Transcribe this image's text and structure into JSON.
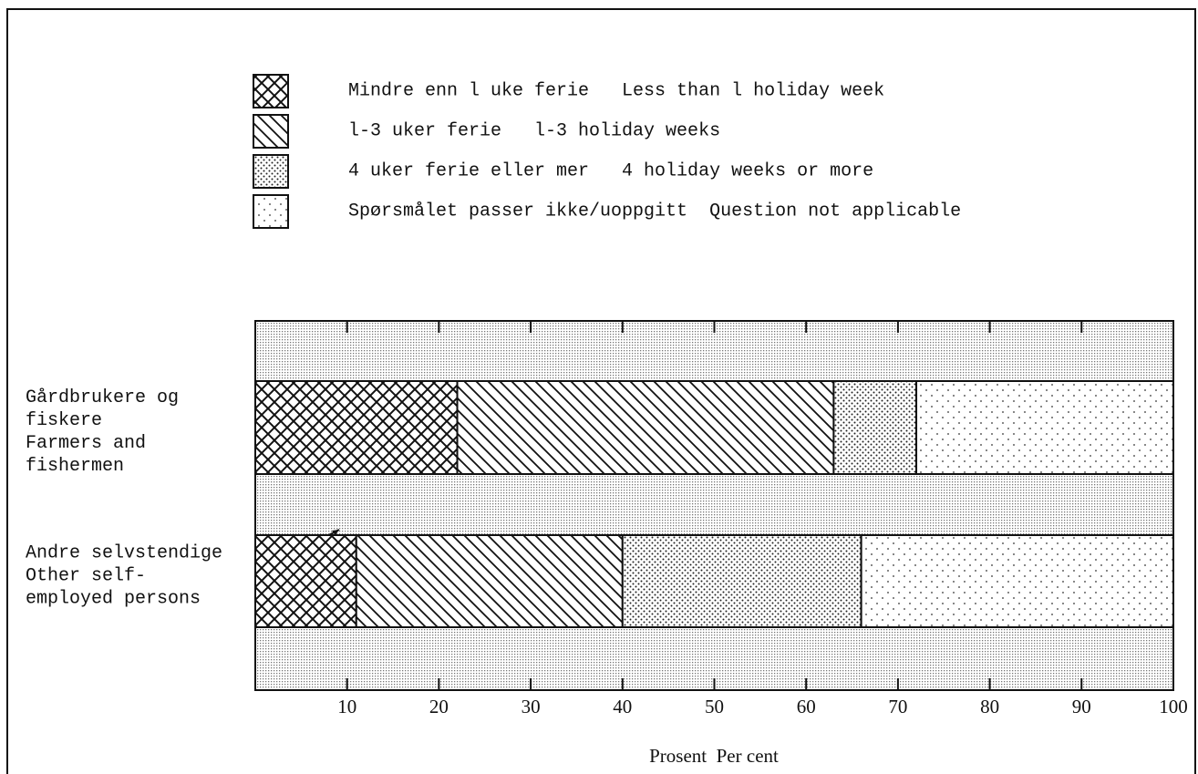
{
  "chart_data": {
    "type": "stacked-barh",
    "categories": [
      "Gårdbrukere og\nfiskere\nFarmers and\nfishermen",
      "Andre selvstendige\nOther self-\nemployed persons"
    ],
    "series": [
      {
        "name": "Mindre enn l uke ferie   Less than l holiday week",
        "pattern": "crosshatch",
        "values": [
          22,
          11
        ]
      },
      {
        "name": "l-3 uker ferie   l-3 holiday weeks",
        "pattern": "diagonal",
        "values": [
          41,
          29
        ]
      },
      {
        "name": "4 uker ferie eller mer   4 holiday weeks or more",
        "pattern": "dense-dots",
        "values": [
          9,
          26
        ]
      },
      {
        "name": "Spørsmålet passer ikke/uoppgitt  Question not applicable",
        "pattern": "sparse-dots",
        "values": [
          28,
          34
        ]
      }
    ],
    "xlim": [
      0,
      100
    ],
    "xticks": [
      10,
      20,
      30,
      40,
      50,
      60,
      70,
      80,
      90,
      100
    ],
    "xlabel": "Prosent  Per cent"
  }
}
